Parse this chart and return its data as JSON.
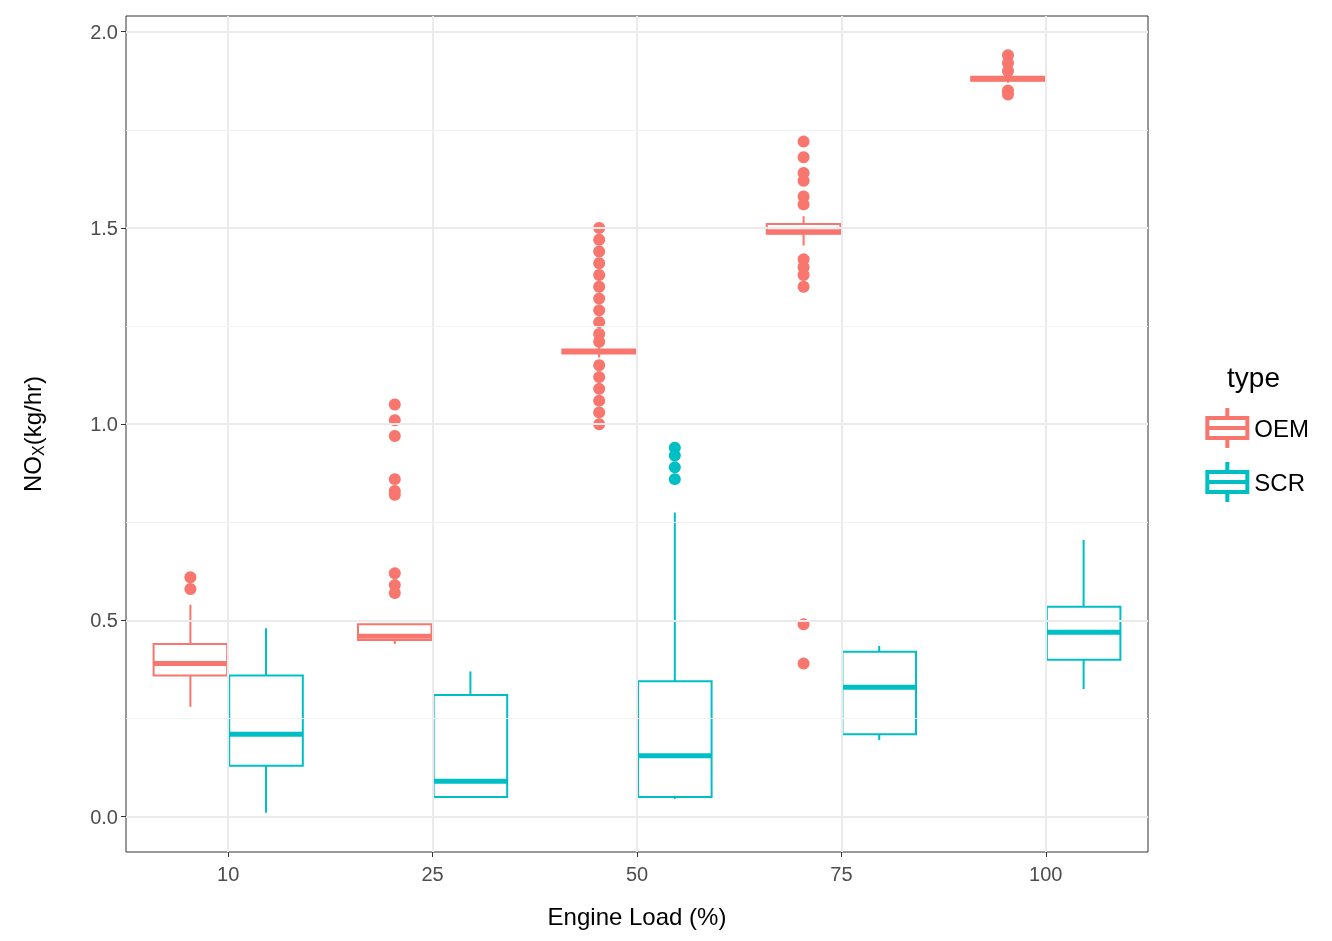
{
  "chart_data": {
    "type": "box",
    "xlabel": "Engine Load (%)",
    "ylabel": "NO$_{X}$(kg/hr)",
    "legend_title": "type",
    "categories": [
      "10",
      "25",
      "50",
      "75",
      "100"
    ],
    "ylim": [
      -0.09,
      2.04
    ],
    "yticks": [
      {
        "value": 0,
        "label": "0.0"
      },
      0.5,
      {
        "value": 1,
        "label": "1.0"
      },
      1.5,
      {
        "value": 2,
        "label": "2.0"
      }
    ],
    "grid": true,
    "legend": "right",
    "marker": "circle",
    "series": [
      {
        "name": "OEM",
        "color": "#f8766d",
        "boxes": [
          {
            "low": 0.28,
            "q1": 0.36,
            "median": 0.39,
            "q3": 0.44,
            "high": 0.54,
            "outliers": [
              0.61,
              0.58
            ]
          },
          {
            "low": 0.44,
            "q1": 0.45,
            "median": 0.46,
            "q3": 0.49,
            "high": 0.49,
            "outliers": [
              1.05,
              1.01,
              0.97,
              0.86,
              0.83,
              0.82,
              0.62,
              0.59,
              0.57
            ]
          },
          {
            "low": 1.17,
            "q1": 1.18,
            "median": 1.185,
            "q3": 1.19,
            "high": 1.2,
            "outliers": [
              1.5,
              1.47,
              1.44,
              1.41,
              1.38,
              1.35,
              1.32,
              1.29,
              1.26,
              1.23,
              1.21,
              1.15,
              1.12,
              1.09,
              1.06,
              1.03,
              1.0
            ]
          },
          {
            "low": 1.455,
            "q1": 1.485,
            "median": 1.49,
            "q3": 1.51,
            "high": 1.53,
            "outliers": [
              1.72,
              1.68,
              1.64,
              1.62,
              1.58,
              1.56,
              1.42,
              1.4,
              1.38,
              1.35,
              0.49,
              0.39
            ]
          },
          {
            "low": 1.87,
            "q1": 1.875,
            "median": 1.88,
            "q3": 1.885,
            "high": 1.89,
            "outliers": [
              1.94,
              1.92,
              1.9,
              1.85,
              1.84
            ]
          }
        ]
      },
      {
        "name": "SCR",
        "color": "#00bfc4",
        "boxes": [
          {
            "low": 0.01,
            "q1": 0.13,
            "median": 0.21,
            "q3": 0.36,
            "high": 0.48
          },
          {
            "low": 0.05,
            "q1": 0.05,
            "median": 0.09,
            "q3": 0.31,
            "high": 0.37
          },
          {
            "low": 0.045,
            "q1": 0.05,
            "median": 0.155,
            "q3": 0.345,
            "high": 0.775,
            "outliers": [
              0.94,
              0.92,
              0.89,
              0.86
            ]
          },
          {
            "low": 0.195,
            "q1": 0.21,
            "median": 0.33,
            "q3": 0.42,
            "high": 0.435
          },
          {
            "low": 0.325,
            "q1": 0.4,
            "median": 0.47,
            "q3": 0.535,
            "high": 0.705
          }
        ]
      }
    ]
  }
}
